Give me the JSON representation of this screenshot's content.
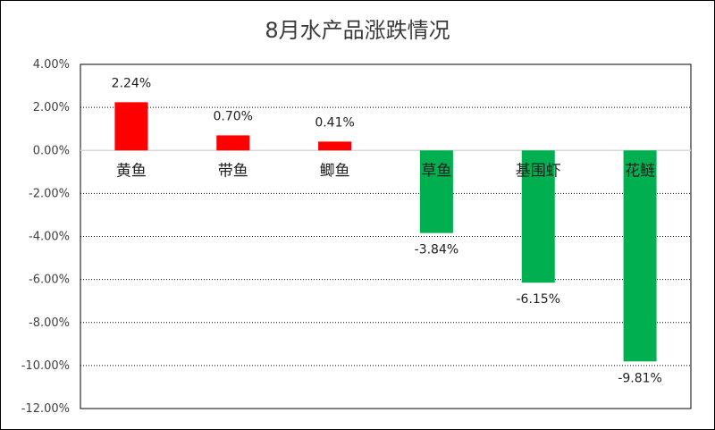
{
  "chart_data": {
    "type": "bar",
    "title": "8月水产品涨跌情况",
    "categories": [
      "黄鱼",
      "带鱼",
      "鲫鱼",
      "草鱼",
      "基围虾",
      "花鲢"
    ],
    "values": [
      2.24,
      0.7,
      0.41,
      -3.84,
      -6.15,
      -9.81
    ],
    "data_labels": [
      "2.24%",
      "0.70%",
      "0.41%",
      "-3.84%",
      "-6.15%",
      "-9.81%"
    ],
    "ylim": [
      -12,
      4
    ],
    "yticks": [
      4,
      2,
      0,
      -2,
      -4,
      -6,
      -8,
      -10,
      -12
    ],
    "ytick_labels": [
      "4.00%",
      "2.00%",
      "0.00%",
      "-2.00%",
      "-4.00%",
      "-6.00%",
      "-8.00%",
      "-10.00%",
      "-12.00%"
    ],
    "grid": "horizontal-dotted",
    "legend": "none",
    "colors": {
      "positive": "#ff0000",
      "negative": "#00b050",
      "zero_line": "#d9d9d9",
      "grid": "#000000"
    }
  }
}
